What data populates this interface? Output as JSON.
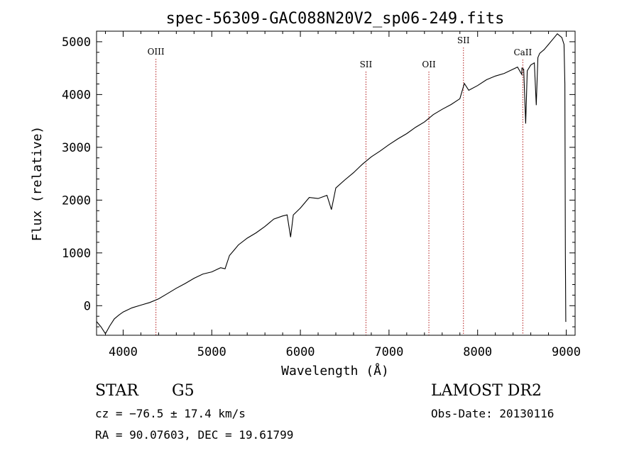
{
  "chart_data": {
    "type": "line",
    "title": "spec-56309-GAC088N20V2_sp06-249.fits",
    "xlabel": "Wavelength (Å)",
    "ylabel": "Flux (relative)",
    "xlim": [
      3700,
      9100
    ],
    "ylim": [
      -560,
      5200
    ],
    "xticks": [
      4000,
      5000,
      6000,
      7000,
      8000,
      9000
    ],
    "yticks": [
      0,
      1000,
      2000,
      3000,
      4000,
      5000
    ],
    "grid": false,
    "series": [
      {
        "x": [
          3700,
          3750,
          3800,
          3850,
          3900,
          3950,
          4000,
          4100,
          4200,
          4300,
          4400,
          4500,
          4600,
          4700,
          4800,
          4900,
          5000,
          5100,
          5150,
          5200,
          5250,
          5300,
          5400,
          5500,
          5600,
          5700,
          5800,
          5850,
          5890,
          5920,
          6000,
          6050,
          6100,
          6200,
          6300,
          6350,
          6400,
          6500,
          6600,
          6700,
          6800,
          6900,
          7000,
          7100,
          7200,
          7300,
          7400,
          7500,
          7600,
          7700,
          7800,
          7850,
          7900,
          8000,
          8100,
          8200,
          8300,
          8400,
          8450,
          8498,
          8500,
          8520,
          8542,
          8560,
          8600,
          8640,
          8662,
          8680,
          8700,
          8750,
          8800,
          8850,
          8900,
          8950,
          8975,
          8985,
          8990,
          8995,
          9000
        ],
        "y": [
          -300,
          -400,
          -530,
          -380,
          -250,
          -180,
          -120,
          -40,
          10,
          60,
          130,
          230,
          330,
          420,
          520,
          600,
          640,
          720,
          700,
          950,
          1050,
          1150,
          1280,
          1380,
          1500,
          1640,
          1700,
          1720,
          1300,
          1720,
          1850,
          1950,
          2050,
          2030,
          2090,
          1820,
          2230,
          2380,
          2520,
          2680,
          2820,
          2930,
          3050,
          3160,
          3260,
          3380,
          3480,
          3620,
          3720,
          3810,
          3920,
          4210,
          4080,
          4170,
          4280,
          4350,
          4400,
          4480,
          4520,
          4380,
          4500,
          4480,
          3450,
          4450,
          4560,
          4600,
          3800,
          4700,
          4780,
          4850,
          4950,
          5050,
          5150,
          5080,
          4950,
          4200,
          1000,
          -300,
          -300
        ]
      }
    ],
    "lines": [
      {
        "label": "OIII",
        "x": 4370
      },
      {
        "label": "SII",
        "x": 6740
      },
      {
        "label": "OII",
        "x": 7450
      },
      {
        "label": "SII",
        "x": 7840
      },
      {
        "label": "CaII",
        "x": 8510
      }
    ]
  },
  "info": {
    "object_class": "STAR",
    "subclass": "G5",
    "survey": "LAMOST DR2",
    "cz_text": "cz = −76.5 ± 17.4 km/s",
    "obs_date_text": "Obs-Date: 20130116",
    "radec_text": "RA =  90.07603, DEC =  19.61799"
  }
}
